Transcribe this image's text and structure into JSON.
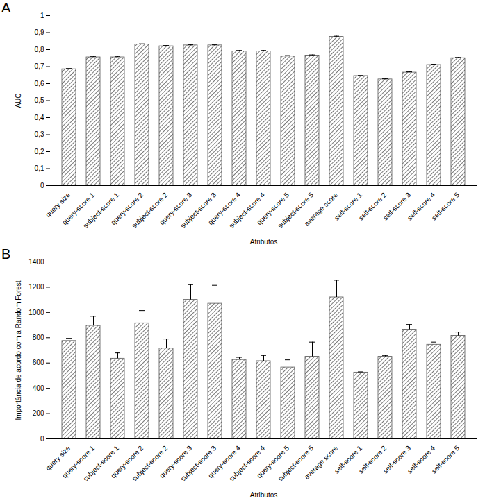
{
  "chart_data": [
    {
      "type": "bar",
      "title": "A",
      "x_label": "Atributos",
      "y_label": "AUC",
      "color": "#555555",
      "categories": [
        "query size",
        "query-score 1",
        "subject-score 1",
        "query-score 2",
        "subject-score 2",
        "query-score 3",
        "subject-score 3",
        "query-score 4",
        "subject-score 4",
        "query-score 5",
        "subject-score 5",
        "average score",
        "self-score 1",
        "self-score 2",
        "self-score 3",
        "self-score 4",
        "self-score 5"
      ],
      "values": [
        0.685,
        0.755,
        0.755,
        0.83,
        0.82,
        0.825,
        0.825,
        0.79,
        0.79,
        0.76,
        0.765,
        0.875,
        0.645,
        0.625,
        0.665,
        0.71,
        0.75
      ],
      "errors": [
        0.004,
        0.005,
        0.005,
        0.004,
        0.004,
        0.003,
        0.003,
        0.005,
        0.005,
        0.005,
        0.004,
        0.004,
        0.003,
        0.003,
        0.004,
        0.004,
        0.004
      ],
      "ylim": [
        0,
        1
      ],
      "yticks": [
        0,
        {
          "value": 0.1,
          "label": "0,1"
        },
        {
          "value": 0.2,
          "label": "0,2"
        },
        {
          "value": 0.3,
          "label": "0,3"
        },
        {
          "value": 0.4,
          "label": "0,4"
        },
        {
          "value": 0.5,
          "label": "0,5"
        },
        {
          "value": 0.6,
          "label": "0,6"
        },
        {
          "value": 0.7,
          "label": "0,7"
        },
        {
          "value": 0.8,
          "label": "0,8"
        },
        {
          "value": 0.9,
          "label": "0,9"
        },
        1
      ],
      "grid": false
    },
    {
      "type": "bar",
      "title": "B",
      "x_label": "Atributos",
      "y_label": "Importância de acordo com a Random Forest",
      "color": "#555555",
      "categories": [
        "query size",
        "query-score 1",
        "subject-score 1",
        "query-score 2",
        "subject-score 2",
        "query-score 3",
        "subject-score 3",
        "query-score 4",
        "subject-score 4",
        "query-score 5",
        "subject-score 5",
        "average score",
        "self-score 1",
        "self-score 2",
        "self-score 3",
        "self-score 4",
        "self-score 5"
      ],
      "values": [
        775,
        895,
        635,
        915,
        715,
        1100,
        1070,
        625,
        615,
        565,
        650,
        1120,
        525,
        650,
        865,
        745,
        815
      ],
      "errors": [
        20,
        75,
        45,
        100,
        75,
        120,
        145,
        20,
        45,
        60,
        115,
        135,
        5,
        10,
        40,
        20,
        30
      ],
      "ylim": [
        0,
        1400
      ],
      "yticks": [
        0,
        200,
        400,
        600,
        800,
        1000,
        1200,
        1400
      ],
      "grid": false
    }
  ]
}
